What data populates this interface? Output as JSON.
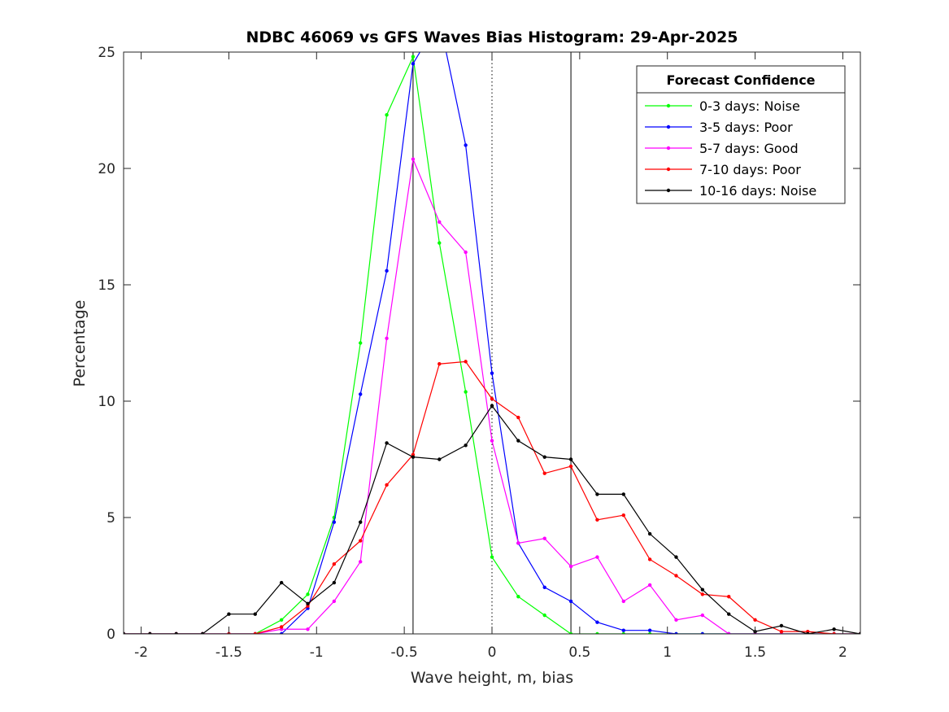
{
  "chart_data": {
    "type": "line",
    "title": "NDBC 46069 vs GFS Waves Bias Histogram: 29-Apr-2025",
    "xlabel": "Wave height, m, bias",
    "ylabel": "Percentage",
    "xlim": [
      -2.1,
      2.1
    ],
    "ylim": [
      0,
      25
    ],
    "xticks": [
      -2,
      -1.5,
      -1,
      -0.5,
      0,
      0.5,
      1,
      1.5,
      2
    ],
    "xtick_labels": [
      "-2",
      "-1.5",
      "-1",
      "-0.5",
      "0",
      "0.5",
      "1",
      "1.5",
      "2"
    ],
    "yticks": [
      0,
      5,
      10,
      15,
      20,
      25
    ],
    "ytick_labels": [
      "0",
      "5",
      "10",
      "15",
      "20",
      "25"
    ],
    "grid": false,
    "reference_lines": [
      {
        "x": -0.45,
        "style": "solid"
      },
      {
        "x": 0,
        "style": "dotted"
      },
      {
        "x": 0.45,
        "style": "solid"
      }
    ],
    "x": [
      -2.1,
      -1.95,
      -1.8,
      -1.65,
      -1.5,
      -1.35,
      -1.2,
      -1.05,
      -0.9,
      -0.75,
      -0.6,
      -0.45,
      -0.3,
      -0.15,
      0,
      0.15,
      0.3,
      0.45,
      0.6,
      0.75,
      0.9,
      1.05,
      1.2,
      1.35,
      1.5,
      1.65,
      1.8,
      1.95,
      2.1
    ],
    "legend": {
      "title": "Forecast Confidence",
      "position": "top-right"
    },
    "series": [
      {
        "name": "0-3 days: Noise",
        "color": "#00ff00",
        "values": [
          0,
          0,
          0,
          0,
          0,
          0,
          0.6,
          1.7,
          5.0,
          12.5,
          22.3,
          24.8,
          16.8,
          10.4,
          3.3,
          1.6,
          0.8,
          0,
          0,
          0,
          0,
          0,
          0,
          0,
          0,
          0,
          0,
          0,
          0
        ]
      },
      {
        "name": "3-5 days: Poor",
        "color": "#0000ff",
        "values": [
          0,
          0,
          0,
          0,
          0,
          0,
          0,
          1.1,
          4.8,
          10.3,
          15.6,
          24.5,
          26.4,
          21.0,
          11.2,
          3.9,
          2.0,
          1.4,
          0.5,
          0.15,
          0.15,
          0,
          0,
          0,
          0,
          0,
          0,
          0,
          0
        ]
      },
      {
        "name": "5-7 days: Good",
        "color": "#ff00ff",
        "values": [
          0,
          0,
          0,
          0,
          0,
          0,
          0.2,
          0.2,
          1.4,
          3.1,
          12.7,
          20.4,
          17.7,
          16.4,
          8.3,
          3.9,
          4.1,
          2.9,
          3.3,
          1.4,
          2.1,
          0.6,
          0.8,
          0,
          0,
          0,
          0,
          0,
          0
        ]
      },
      {
        "name": "7-10 days: Poor",
        "color": "#ff0000",
        "values": [
          0,
          0,
          0,
          0,
          0,
          0,
          0.3,
          1.2,
          3.0,
          4.0,
          6.4,
          7.7,
          11.6,
          11.7,
          10.1,
          9.3,
          6.9,
          7.2,
          4.9,
          5.1,
          3.2,
          2.5,
          1.7,
          1.6,
          0.6,
          0.1,
          0.1,
          0,
          0
        ]
      },
      {
        "name": "10-16 days: Noise",
        "color": "#000000",
        "values": [
          0,
          0,
          0,
          0,
          0.85,
          0.85,
          2.2,
          1.3,
          2.2,
          4.8,
          8.2,
          7.6,
          7.5,
          8.1,
          9.8,
          8.3,
          7.6,
          7.5,
          6.0,
          6.0,
          4.3,
          3.3,
          1.9,
          0.85,
          0.1,
          0.35,
          0,
          0.2,
          0
        ]
      }
    ]
  }
}
